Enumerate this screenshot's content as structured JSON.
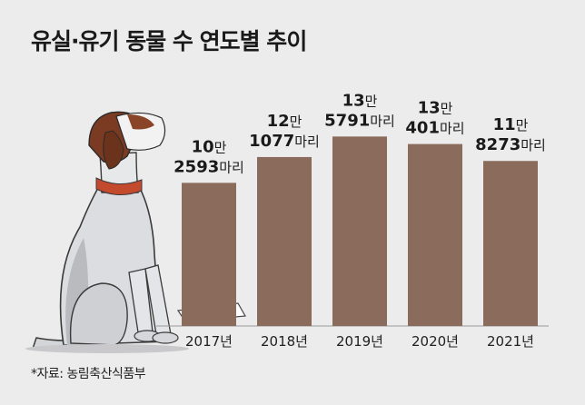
{
  "title": "유실·유기 동물 수 연도별 추이",
  "source": "*자료: 농림축산식품부",
  "chart_data": {
    "type": "bar",
    "title": "유실·유기 동물 수 연도별 추이",
    "categories": [
      "2017년",
      "2018년",
      "2019년",
      "2020년",
      "2021년"
    ],
    "values": [
      102593,
      121077,
      135791,
      130401,
      118273
    ],
    "labels": [
      {
        "top_num": "10",
        "top_unit": "만",
        "bot_num": "2593",
        "bot_unit": "마리"
      },
      {
        "top_num": "12",
        "top_unit": "만",
        "bot_num": "1077",
        "bot_unit": "마리"
      },
      {
        "top_num": "13",
        "top_unit": "만",
        "bot_num": "5791",
        "bot_unit": "마리"
      },
      {
        "top_num": "13",
        "top_unit": "만",
        "bot_num": "401",
        "bot_unit": "마리"
      },
      {
        "top_num": "11",
        "top_unit": "만",
        "bot_num": "8273",
        "bot_unit": "마리"
      }
    ],
    "ylim": [
      0,
      136000
    ],
    "grid": false,
    "colors": {
      "bar": "#8b6c5c",
      "background": "#ececec"
    }
  }
}
